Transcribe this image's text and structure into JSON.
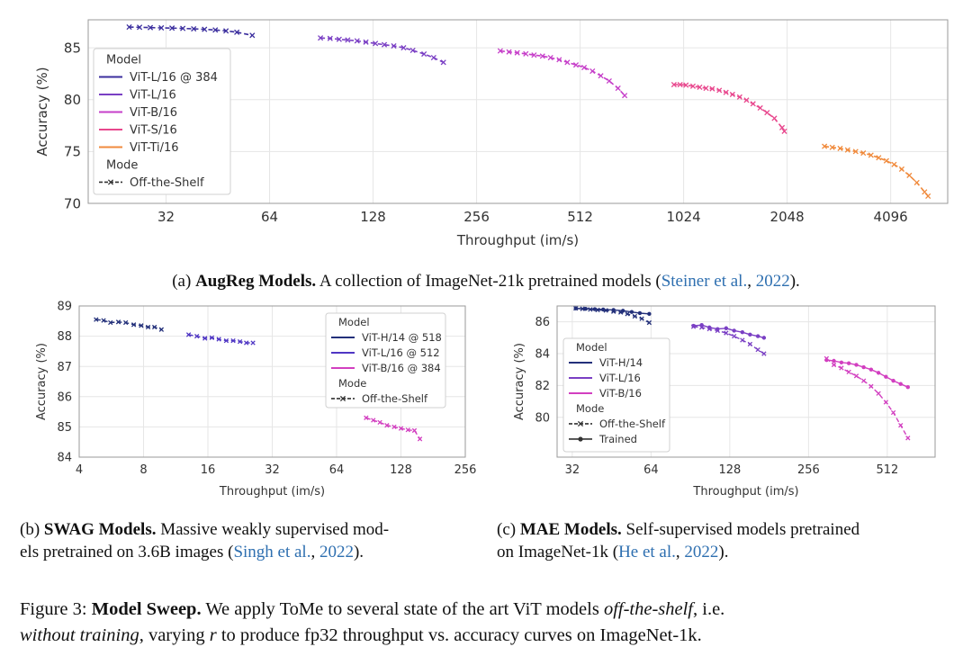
{
  "chart_data": [
    {
      "id": "a",
      "type": "line",
      "xscale": "log2",
      "xlabel": "Throughput (im/s)",
      "ylabel": "Accuracy (%)",
      "xlim": [
        19,
        6000
      ],
      "ylim": [
        70,
        87.7
      ],
      "xticks": [
        32,
        64,
        128,
        256,
        512,
        1024,
        2048,
        4096
      ],
      "xtick_labels": [
        "32",
        "64",
        "128",
        "256",
        "512",
        "1024",
        "2048",
        "4096"
      ],
      "yticks": [
        70,
        75,
        80,
        85
      ],
      "ytick_labels": [
        "70",
        "75",
        "80",
        "85"
      ],
      "grid": true,
      "legend": {
        "placement": "upper-left",
        "header1": "Model",
        "entries": [
          {
            "label": "ViT-L/16 @ 384",
            "color": "#3b2e9e"
          },
          {
            "label": "ViT-L/16",
            "color": "#7a3fc4"
          },
          {
            "label": "ViT-B/16",
            "color": "#c63fc9"
          },
          {
            "label": "ViT-S/16",
            "color": "#e8478d"
          },
          {
            "label": "ViT-Ti/16",
            "color": "#f08a3c"
          }
        ],
        "header2": "Mode",
        "mode_entries": [
          {
            "label": "Off-the-Shelf",
            "style": "dashed-x"
          }
        ]
      },
      "series": [
        {
          "model": "ViT-L/16 @ 384",
          "mode": "Off-the-Shelf",
          "color": "#3b2e9e",
          "points": [
            [
              25,
              87.0
            ],
            [
              26.8,
              86.98
            ],
            [
              28.8,
              86.95
            ],
            [
              31,
              86.92
            ],
            [
              33.3,
              86.9
            ],
            [
              35.8,
              86.87
            ],
            [
              38.5,
              86.83
            ],
            [
              41.4,
              86.78
            ],
            [
              44.5,
              86.72
            ],
            [
              47.8,
              86.63
            ],
            [
              51.4,
              86.5
            ],
            [
              57,
              86.2
            ]
          ]
        },
        {
          "model": "ViT-L/16",
          "mode": "Off-the-Shelf",
          "color": "#7a3fc4",
          "points": [
            [
              90,
              85.95
            ],
            [
              96,
              85.9
            ],
            [
              102,
              85.82
            ],
            [
              108,
              85.75
            ],
            [
              115,
              85.67
            ],
            [
              122,
              85.55
            ],
            [
              130,
              85.42
            ],
            [
              138,
              85.3
            ],
            [
              147,
              85.18
            ],
            [
              157,
              85.0
            ],
            [
              167,
              84.75
            ],
            [
              180,
              84.4
            ],
            [
              192,
              84.05
            ],
            [
              205,
              83.6
            ]
          ]
        },
        {
          "model": "ViT-B/16",
          "mode": "Off-the-Shelf",
          "color": "#c63fc9",
          "points": [
            [
              300,
              84.7
            ],
            [
              318,
              84.6
            ],
            [
              336,
              84.52
            ],
            [
              356,
              84.42
            ],
            [
              376,
              84.3
            ],
            [
              398,
              84.2
            ],
            [
              420,
              84.05
            ],
            [
              445,
              83.85
            ],
            [
              470,
              83.6
            ],
            [
              498,
              83.35
            ],
            [
              526,
              83.1
            ],
            [
              556,
              82.75
            ],
            [
              588,
              82.3
            ],
            [
              622,
              81.8
            ],
            [
              660,
              81.1
            ],
            [
              690,
              80.4
            ]
          ]
        },
        {
          "model": "ViT-S/16",
          "mode": "Off-the-Shelf",
          "color": "#e8478d",
          "points": [
            [
              960,
              81.45
            ],
            [
              1000,
              81.45
            ],
            [
              1040,
              81.4
            ],
            [
              1090,
              81.3
            ],
            [
              1140,
              81.2
            ],
            [
              1190,
              81.1
            ],
            [
              1240,
              81.05
            ],
            [
              1300,
              80.9
            ],
            [
              1360,
              80.7
            ],
            [
              1420,
              80.5
            ],
            [
              1490,
              80.25
            ],
            [
              1560,
              79.95
            ],
            [
              1630,
              79.6
            ],
            [
              1710,
              79.2
            ],
            [
              1790,
              78.75
            ],
            [
              1880,
              78.2
            ],
            [
              1980,
              77.3
            ],
            [
              2010,
              76.95
            ]
          ]
        },
        {
          "model": "ViT-Ti/16",
          "mode": "Off-the-Shelf",
          "color": "#f08a3c",
          "points": [
            [
              2630,
              75.5
            ],
            [
              2770,
              75.4
            ],
            [
              2920,
              75.3
            ],
            [
              3070,
              75.15
            ],
            [
              3240,
              75.0
            ],
            [
              3410,
              74.85
            ],
            [
              3590,
              74.65
            ],
            [
              3780,
              74.4
            ],
            [
              3980,
              74.1
            ],
            [
              4190,
              73.75
            ],
            [
              4410,
              73.3
            ],
            [
              4640,
              72.7
            ],
            [
              4880,
              72.0
            ],
            [
              5140,
              71.1
            ],
            [
              5260,
              70.7
            ]
          ]
        }
      ]
    },
    {
      "id": "b",
      "type": "line",
      "xscale": "log2",
      "xlabel": "Throughput (im/s)",
      "ylabel": "Accuracy (%)",
      "xlim": [
        4,
        256
      ],
      "ylim": [
        84,
        89
      ],
      "xticks": [
        4,
        8,
        16,
        32,
        64,
        128,
        256
      ],
      "xtick_labels": [
        "4",
        "8",
        "16",
        "32",
        "64",
        "128",
        "256"
      ],
      "yticks": [
        84,
        85,
        86,
        87,
        88,
        89
      ],
      "ytick_labels": [
        "84",
        "85",
        "86",
        "87",
        "88",
        "89"
      ],
      "grid": true,
      "legend": {
        "placement": "upper-right",
        "header1": "Model",
        "entries": [
          {
            "label": "ViT-H/14 @ 518",
            "color": "#23307a"
          },
          {
            "label": "ViT-L/16 @ 512",
            "color": "#4f36c4"
          },
          {
            "label": "ViT-B/16 @ 384",
            "color": "#d23fc0"
          }
        ],
        "header2": "Mode",
        "mode_entries": [
          {
            "label": "Off-the-Shelf",
            "style": "dashed-x"
          }
        ]
      },
      "series": [
        {
          "model": "ViT-H/14 @ 518",
          "mode": "Off-the-Shelf",
          "color": "#23307a",
          "points": [
            [
              4.8,
              88.55
            ],
            [
              5.2,
              88.52
            ],
            [
              5.6,
              88.45
            ],
            [
              6.1,
              88.47
            ],
            [
              6.6,
              88.45
            ],
            [
              7.2,
              88.38
            ],
            [
              7.8,
              88.35
            ],
            [
              8.4,
              88.3
            ],
            [
              9.0,
              88.3
            ],
            [
              9.7,
              88.22
            ]
          ]
        },
        {
          "model": "ViT-L/16 @ 512",
          "mode": "Off-the-Shelf",
          "color": "#4f36c4",
          "points": [
            [
              13,
              88.05
            ],
            [
              14.2,
              88.0
            ],
            [
              15.5,
              87.93
            ],
            [
              16.7,
              87.95
            ],
            [
              18,
              87.9
            ],
            [
              19.5,
              87.85
            ],
            [
              21,
              87.85
            ],
            [
              22.6,
              87.82
            ],
            [
              24.2,
              87.78
            ],
            [
              26,
              87.78
            ]
          ]
        },
        {
          "model": "ViT-B/16 @ 384",
          "mode": "Off-the-Shelf",
          "color": "#d23fc0",
          "points": [
            [
              88,
              85.3
            ],
            [
              95,
              85.22
            ],
            [
              102,
              85.15
            ],
            [
              110,
              85.05
            ],
            [
              119,
              85.0
            ],
            [
              128,
              84.95
            ],
            [
              138,
              84.9
            ],
            [
              148,
              84.88
            ],
            [
              157,
              84.6
            ]
          ]
        }
      ]
    },
    {
      "id": "c",
      "type": "line",
      "xscale": "log2",
      "xlabel": "Throughput (im/s)",
      "ylabel": "Accuracy (%)",
      "xlim": [
        28,
        780
      ],
      "ylim": [
        77.5,
        87
      ],
      "xticks": [
        32,
        64,
        128,
        256,
        512
      ],
      "xtick_labels": [
        "32",
        "64",
        "128",
        "256",
        "512"
      ],
      "yticks": [
        80,
        82,
        84,
        86
      ],
      "ytick_labels": [
        "80",
        "82",
        "84",
        "86"
      ],
      "grid": true,
      "legend": {
        "placement": "lower-left",
        "header1": "Model",
        "entries": [
          {
            "label": "ViT-H/14",
            "color": "#23307a"
          },
          {
            "label": "ViT-L/16",
            "color": "#7a3fc4"
          },
          {
            "label": "ViT-B/16",
            "color": "#d23fc0"
          }
        ],
        "header2": "Mode",
        "mode_entries": [
          {
            "label": "Off-the-Shelf",
            "style": "dashed-x"
          },
          {
            "label": "Trained",
            "style": "solid-dot"
          }
        ]
      },
      "series": [
        {
          "model": "ViT-H/14",
          "mode": "Off-the-Shelf",
          "color": "#23307a",
          "points": [
            [
              33,
              86.85
            ],
            [
              35,
              86.82
            ],
            [
              37.5,
              86.78
            ],
            [
              40,
              86.75
            ],
            [
              43,
              86.72
            ],
            [
              46,
              86.65
            ],
            [
              49,
              86.6
            ],
            [
              52,
              86.5
            ],
            [
              55.5,
              86.35
            ],
            [
              59,
              86.2
            ],
            [
              63,
              85.95
            ]
          ]
        },
        {
          "model": "ViT-H/14",
          "mode": "Trained",
          "color": "#23307a",
          "points": [
            [
              33,
              86.85
            ],
            [
              36,
              86.82
            ],
            [
              39,
              86.8
            ],
            [
              42,
              86.78
            ],
            [
              46,
              86.75
            ],
            [
              50,
              86.7
            ],
            [
              54,
              86.62
            ],
            [
              58,
              86.55
            ],
            [
              63,
              86.5
            ]
          ]
        },
        {
          "model": "ViT-L/16",
          "mode": "Off-the-Shelf",
          "color": "#7a3fc4",
          "points": [
            [
              93,
              85.7
            ],
            [
              100,
              85.65
            ],
            [
              107,
              85.55
            ],
            [
              115,
              85.45
            ],
            [
              124,
              85.3
            ],
            [
              133,
              85.1
            ],
            [
              143,
              84.85
            ],
            [
              153,
              84.6
            ],
            [
              164,
              84.25
            ],
            [
              173,
              84.0
            ]
          ]
        },
        {
          "model": "ViT-L/16",
          "mode": "Trained",
          "color": "#7a3fc4",
          "points": [
            [
              93,
              85.75
            ],
            [
              100,
              85.8
            ],
            [
              107,
              85.65
            ],
            [
              115,
              85.55
            ],
            [
              124,
              85.6
            ],
            [
              133,
              85.45
            ],
            [
              143,
              85.35
            ],
            [
              153,
              85.2
            ],
            [
              164,
              85.1
            ],
            [
              173,
              85.0
            ]
          ]
        },
        {
          "model": "ViT-B/16",
          "mode": "Off-the-Shelf",
          "color": "#d23fc0",
          "points": [
            [
              300,
              83.7
            ],
            [
              320,
              83.3
            ],
            [
              342,
              83.1
            ],
            [
              365,
              82.85
            ],
            [
              390,
              82.6
            ],
            [
              416,
              82.3
            ],
            [
              444,
              81.95
            ],
            [
              474,
              81.5
            ],
            [
              506,
              80.95
            ],
            [
              540,
              80.3
            ],
            [
              576,
              79.5
            ],
            [
              614,
              78.7
            ]
          ]
        },
        {
          "model": "ViT-B/16",
          "mode": "Trained",
          "color": "#d23fc0",
          "points": [
            [
              300,
              83.6
            ],
            [
              320,
              83.55
            ],
            [
              342,
              83.45
            ],
            [
              365,
              83.4
            ],
            [
              390,
              83.3
            ],
            [
              416,
              83.15
            ],
            [
              444,
              83.0
            ],
            [
              474,
              82.8
            ],
            [
              506,
              82.55
            ],
            [
              540,
              82.3
            ],
            [
              576,
              82.1
            ],
            [
              614,
              81.9
            ]
          ]
        }
      ]
    }
  ],
  "captions": {
    "a": {
      "prefix": "(a) ",
      "bold": "AugReg Models.",
      "text": " A collection of ImageNet-21k pretrained models (",
      "cite": "Steiner et al.",
      "mid": ", ",
      "year": "2022",
      "end": ")."
    },
    "b": {
      "prefix": "(b) ",
      "bold": "SWAG Models.",
      "line1": " Massive weakly supervised mod-",
      "line2_a": "els pretrained on 3.6B images (",
      "cite": "Singh et al.",
      "mid": ", ",
      "year": "2022",
      "end": ")."
    },
    "c": {
      "prefix": "(c) ",
      "bold": "MAE Models.",
      "line1": " Self-supervised models pretrained",
      "line2_a": "on ImageNet-1k (",
      "cite": "He et al.",
      "mid": ", ",
      "year": "2022",
      "end": ")."
    },
    "figure": {
      "label": "Figure 3: ",
      "bold": "Model Sweep.",
      "l1_a": " We apply ToMe to several state of the art ViT models ",
      "l1_i": "off-the-shelf",
      "l1_b": ", i.e.",
      "l2_i": "without training",
      "l2_a": ", varying ",
      "l2_r": "r",
      "l2_b": " to produce fp32 throughput vs. accuracy curves on ImageNet-1k."
    }
  }
}
